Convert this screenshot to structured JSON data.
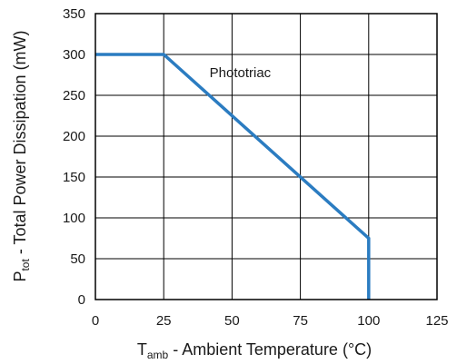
{
  "chart_data": {
    "type": "line",
    "title": "",
    "xlabel": {
      "symbol": "T",
      "subscript": "amb",
      "text": " - Ambient Temperature (°C)"
    },
    "ylabel": {
      "symbol": "P",
      "subscript": "tot",
      "text": " - Total Power Dissipation (mW)"
    },
    "xlim": [
      0,
      125
    ],
    "ylim": [
      0,
      350
    ],
    "xticks": [
      0,
      25,
      50,
      75,
      100,
      125
    ],
    "yticks": [
      0,
      50,
      100,
      150,
      200,
      250,
      300,
      350
    ],
    "grid": true,
    "legend": "none",
    "series": [
      {
        "name": "Phototriac",
        "color": "#2b7cc1",
        "x": [
          0,
          25,
          100,
          100
        ],
        "y": [
          300,
          300,
          75,
          0
        ]
      }
    ],
    "annotations": [
      {
        "text": "Phototriac",
        "x": 53,
        "y": 272
      }
    ]
  }
}
